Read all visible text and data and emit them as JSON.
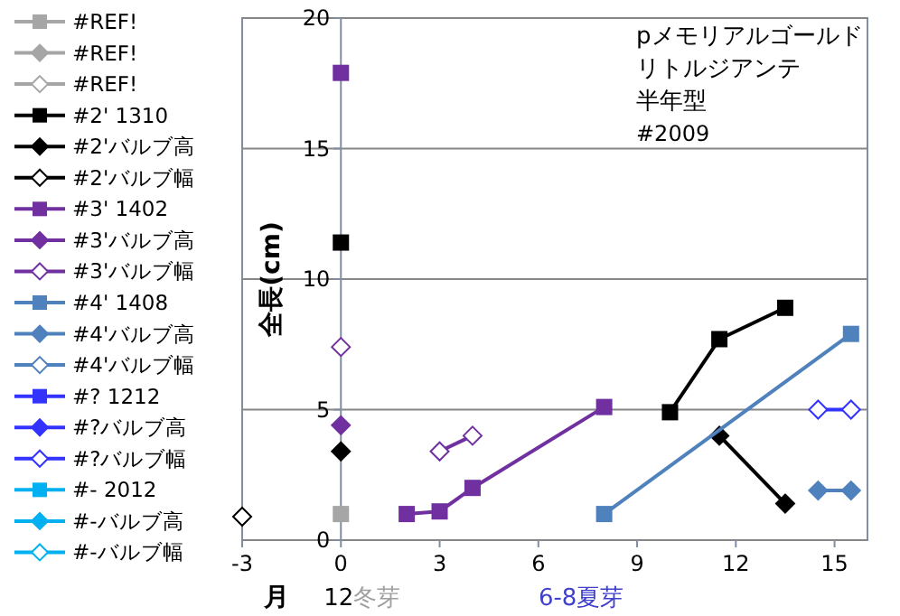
{
  "chart_data": {
    "type": "line",
    "ylabel": "全長(cm)",
    "xlabel": "月",
    "annotations": [
      "pメモリアルゴールド",
      "リトルジアンテ",
      "半年型",
      "#2009",
      "12",
      "冬芽",
      "6-8夏芽"
    ],
    "xlim": [
      -3,
      16
    ],
    "xticks": [
      -3,
      0,
      3,
      6,
      9,
      12,
      15
    ],
    "ylim": [
      0,
      20
    ],
    "yticks": [
      0,
      5,
      10,
      15,
      20
    ],
    "grid": "y",
    "legend": "left",
    "line_style": "solid",
    "series": [
      {
        "name": "#REF!",
        "color": "#a6a6a6",
        "marker": "square",
        "x": [
          0
        ],
        "values": [
          1.0
        ]
      },
      {
        "name": "#REF!",
        "color": "#a6a6a6",
        "marker": "diamond"
      },
      {
        "name": "#REF!",
        "color": "#a6a6a6",
        "marker": "diamond-open"
      },
      {
        "name": "#2' 1310",
        "color": "#000000",
        "marker": "square",
        "x": [
          10,
          11.5,
          13.5
        ],
        "values": [
          4.9,
          7.7,
          8.9
        ]
      },
      {
        "name": "#2'バルブ高",
        "color": "#000000",
        "marker": "diamond",
        "x": [
          11.5,
          13.5
        ],
        "values": [
          4.0,
          1.4
        ]
      },
      {
        "name": "#2'バルブ幅",
        "color": "#000000",
        "marker": "diamond-open",
        "x": [
          -3
        ],
        "values": [
          0.9
        ]
      },
      {
        "name": "#3' 1402",
        "color": "#7030a0",
        "marker": "square",
        "x": [
          2,
          3,
          4,
          8
        ],
        "values": [
          1.0,
          1.1,
          2.0,
          5.1
        ]
      },
      {
        "name": "#3'バルブ高",
        "color": "#7030a0",
        "marker": "diamond",
        "x": [
          0
        ],
        "values": [
          4.4
        ]
      },
      {
        "name": "#3'バルブ幅",
        "color": "#7030a0",
        "marker": "diamond-open",
        "x": [
          3,
          4
        ],
        "values": [
          3.4,
          4.0
        ]
      },
      {
        "name": "#4' 1408",
        "color": "#4f81bd",
        "marker": "square",
        "x": [
          8,
          15.5
        ],
        "values": [
          1.0,
          7.9
        ]
      },
      {
        "name": "#4'バルブ高",
        "color": "#4f81bd",
        "marker": "diamond",
        "x": [
          14.5,
          15.5
        ],
        "values": [
          1.9,
          1.9
        ]
      },
      {
        "name": "#4'バルブ幅",
        "color": "#4f81bd",
        "marker": "diamond-open"
      },
      {
        "name": "#? 1212",
        "color": "#3333ff",
        "marker": "square"
      },
      {
        "name": "#?バルブ高",
        "color": "#3333ff",
        "marker": "diamond"
      },
      {
        "name": "#?バルブ幅",
        "color": "#3333ff",
        "marker": "diamond-open",
        "x": [
          14.5,
          15.5
        ],
        "values": [
          5.0,
          5.0
        ]
      },
      {
        "name": "#- 2012",
        "color": "#00b0f0",
        "marker": "square"
      },
      {
        "name": "#-バルブ高",
        "color": "#00b0f0",
        "marker": "diamond"
      },
      {
        "name": "#-バルブ幅",
        "color": "#00b0f0",
        "marker": "diamond-open"
      },
      {
        "type": "scatter",
        "color": "#000000",
        "marker": "square",
        "x": [
          0
        ],
        "values": [
          11.4
        ]
      },
      {
        "type": "scatter",
        "color": "#000000",
        "marker": "diamond",
        "x": [
          0
        ],
        "values": [
          3.4
        ]
      },
      {
        "type": "scatter",
        "color": "#7030a0",
        "marker": "square",
        "x": [
          0
        ],
        "values": [
          17.9
        ]
      },
      {
        "type": "scatter",
        "color": "#7030a0",
        "marker": "diamond-open",
        "x": [
          0
        ],
        "values": [
          7.4
        ]
      }
    ]
  }
}
